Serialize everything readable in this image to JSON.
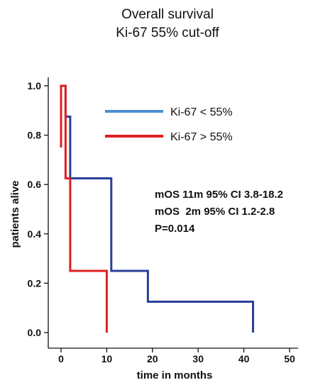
{
  "chart_data": {
    "type": "line",
    "subtype": "kaplan-meier-step",
    "title": "Overall survival",
    "subtitle": "Ki-67 55% cut-off",
    "xlabel": "time in months",
    "ylabel": "patients alive",
    "xlim": [
      0,
      50
    ],
    "ylim": [
      0,
      1.0
    ],
    "x_ticks": [
      0,
      10,
      20,
      30,
      40,
      50
    ],
    "x_tick_labels": [
      "0",
      "10",
      "20",
      "30",
      "40",
      "50"
    ],
    "y_ticks": [
      0.0,
      0.2,
      0.4,
      0.6,
      0.8,
      1.0
    ],
    "y_tick_labels": [
      "0.0",
      "0.2",
      "0.4",
      "0.6",
      "0.8",
      "1.0"
    ],
    "grid": false,
    "legend_position": "top-right",
    "series": [
      {
        "name": "Ki-67 < 55%",
        "legend_color": "#4a90d0",
        "line_color": "#2b3f9c",
        "x": [
          0,
          1,
          1,
          2,
          2,
          11,
          11,
          19,
          19,
          42,
          42
        ],
        "y": [
          1.0,
          1.0,
          0.875,
          0.875,
          0.625,
          0.625,
          0.25,
          0.25,
          0.125,
          0.125,
          0.0
        ]
      },
      {
        "name": "Ki-67 > 55%",
        "legend_color": "#e02020",
        "line_color": "#e02020",
        "x": [
          0,
          0,
          0.3,
          0.3,
          1,
          1,
          2,
          2,
          10,
          10
        ],
        "y": [
          0.75,
          1.0,
          1.0,
          1.0,
          1.0,
          0.625,
          0.625,
          0.25,
          0.25,
          0.0
        ]
      }
    ],
    "annotations": [
      "mOS 11m 95% CI 3.8-18.2",
      "mOS  2m 95% CI 1.2-2.8",
      "P=0.014"
    ]
  }
}
